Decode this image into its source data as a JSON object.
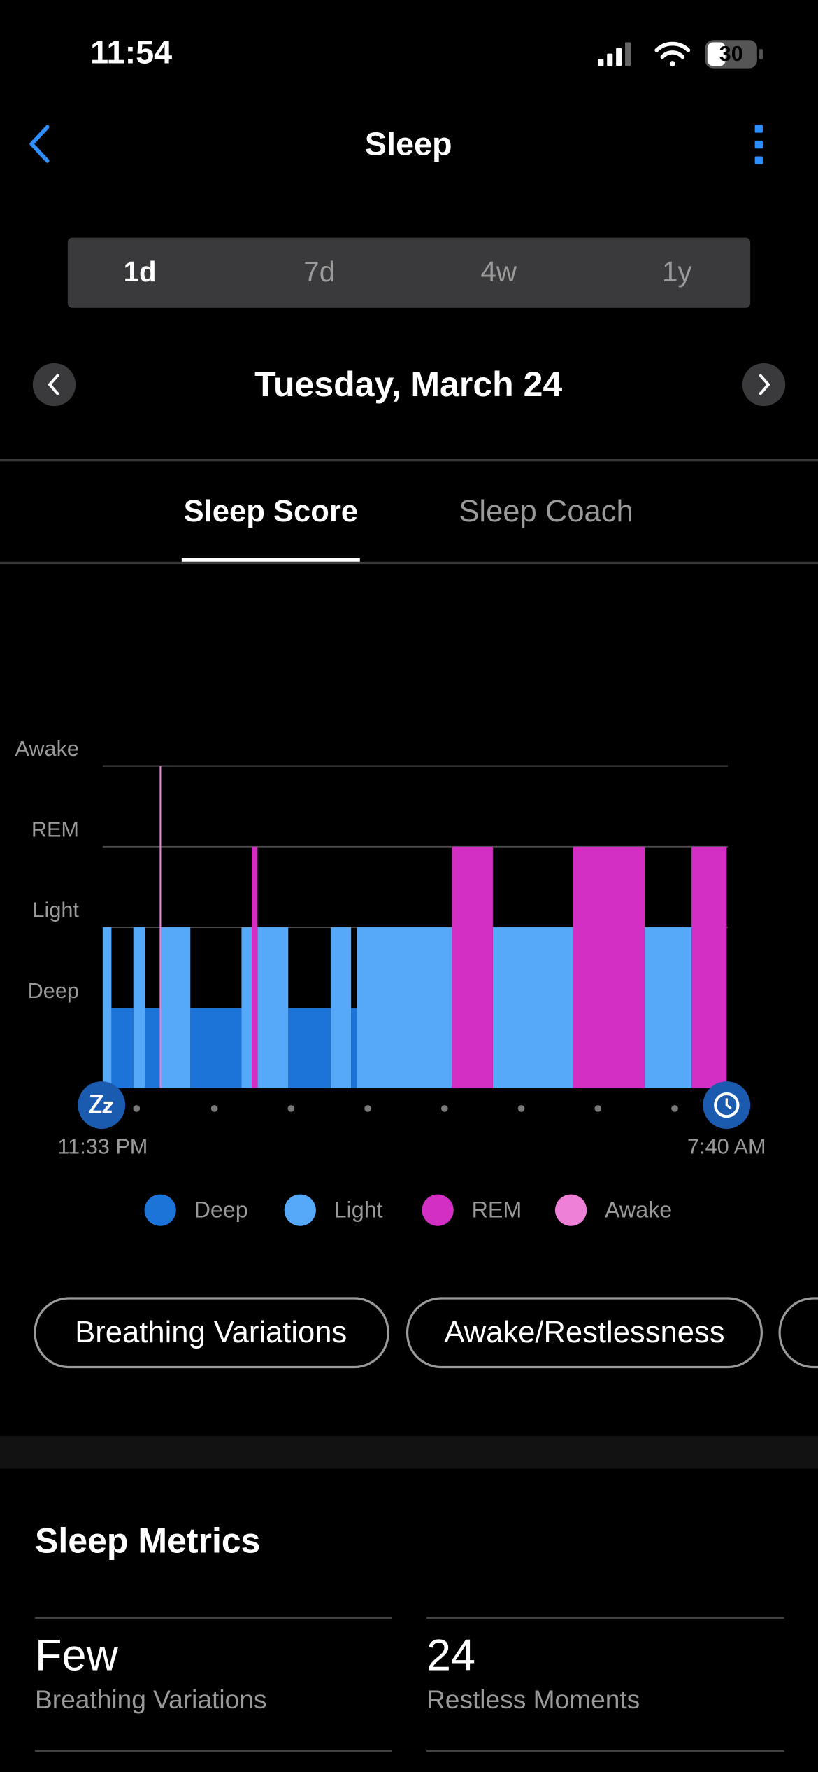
{
  "status_bar": {
    "time": "11:54",
    "battery": 30
  },
  "header": {
    "title": "Sleep"
  },
  "range_tabs": [
    "1d",
    "7d",
    "4w",
    "1y"
  ],
  "date": "Tuesday, March 24",
  "tabs": [
    "Sleep Score",
    "Sleep Coach"
  ],
  "chart_data": {
    "type": "hypnogram",
    "y_categories": [
      "Deep",
      "Light",
      "REM",
      "Awake"
    ],
    "xlim": [
      0,
      427
    ],
    "xticks": [
      {
        "value": 0,
        "label": "11:33 PM"
      },
      {
        "value": 427,
        "label": "7:40 AM"
      }
    ],
    "grid": true,
    "series": [
      {
        "name": "Deep",
        "color": "#1c74d8",
        "intervals": [
          [
            6,
            21
          ],
          [
            29,
            39
          ],
          [
            60,
            95
          ],
          [
            127,
            156
          ],
          [
            170,
            174
          ]
        ]
      },
      {
        "name": "Light",
        "color": "#56a9f8",
        "intervals": [
          [
            0,
            6
          ],
          [
            21,
            29
          ],
          [
            40,
            60
          ],
          [
            95,
            102
          ],
          [
            106,
            127
          ],
          [
            156,
            170
          ],
          [
            174,
            239
          ],
          [
            267,
            322
          ],
          [
            371,
            403
          ]
        ]
      },
      {
        "name": "REM",
        "color": "#d42fc5",
        "intervals": [
          [
            102,
            106
          ],
          [
            239,
            267
          ],
          [
            322,
            371
          ],
          [
            403,
            427
          ]
        ]
      },
      {
        "name": "Awake",
        "color": "#ef80d8",
        "intervals": [
          [
            39,
            40
          ]
        ]
      }
    ]
  },
  "chips": [
    "Breathing Variations",
    "Awake/Restlessness"
  ],
  "metrics": {
    "title": "Sleep Metrics",
    "items": [
      {
        "value": "Few",
        "label": "Breathing Variations"
      },
      {
        "value": 24,
        "label": "Restless Moments"
      }
    ]
  }
}
